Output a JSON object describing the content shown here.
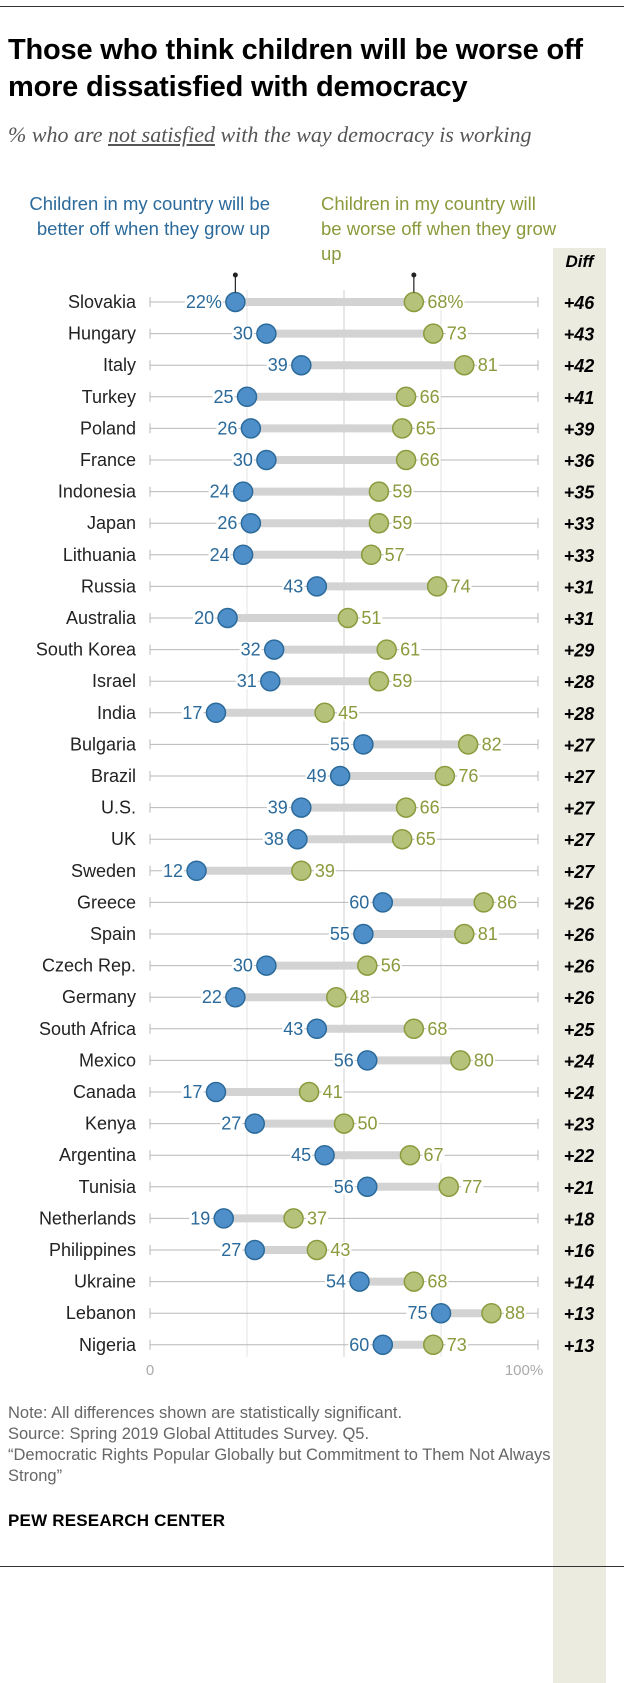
{
  "header": {
    "title": "Those who think children will be worse off more dissatisfied with democracy",
    "subtitle_before": "% who are ",
    "subtitle_underlined": "not satisfied",
    "subtitle_after": " with the way democracy is working"
  },
  "legend": {
    "better_off": "Children in my country will be better off when they grow up",
    "worse_off": "Children in my country will be worse off when they grow up",
    "diff_header": "Diff"
  },
  "colors": {
    "better_off": "#4f8fc9",
    "better_off_stroke": "#2b6a9a",
    "worse_off": "#b5c37a",
    "worse_off_stroke": "#8a9a3c",
    "bar": "#d3d3d3",
    "diff_band": "#ecebe0"
  },
  "chart_data": {
    "type": "dot",
    "series": [
      {
        "name": "Children in my country will be better off when they grow up",
        "key": "better"
      },
      {
        "name": "Children in my country will be worse off when they grow up",
        "key": "worse"
      }
    ],
    "xlim": [
      0,
      100
    ],
    "axis_labels": [
      "0",
      "100%"
    ],
    "rows": [
      {
        "country": "Slovakia",
        "better": 22,
        "worse": 68,
        "better_label": "22%",
        "worse_label": "68%",
        "diff": "+46"
      },
      {
        "country": "Hungary",
        "better": 30,
        "worse": 73,
        "better_label": "30",
        "worse_label": "73",
        "diff": "+43"
      },
      {
        "country": "Italy",
        "better": 39,
        "worse": 81,
        "better_label": "39",
        "worse_label": "81",
        "diff": "+42"
      },
      {
        "country": "Turkey",
        "better": 25,
        "worse": 66,
        "better_label": "25",
        "worse_label": "66",
        "diff": "+41"
      },
      {
        "country": "Poland",
        "better": 26,
        "worse": 65,
        "better_label": "26",
        "worse_label": "65",
        "diff": "+39"
      },
      {
        "country": "France",
        "better": 30,
        "worse": 66,
        "better_label": "30",
        "worse_label": "66",
        "diff": "+36"
      },
      {
        "country": "Indonesia",
        "better": 24,
        "worse": 59,
        "better_label": "24",
        "worse_label": "59",
        "diff": "+35"
      },
      {
        "country": "Japan",
        "better": 26,
        "worse": 59,
        "better_label": "26",
        "worse_label": "59",
        "diff": "+33"
      },
      {
        "country": "Lithuania",
        "better": 24,
        "worse": 57,
        "better_label": "24",
        "worse_label": "57",
        "diff": "+33"
      },
      {
        "country": "Russia",
        "better": 43,
        "worse": 74,
        "better_label": "43",
        "worse_label": "74",
        "diff": "+31"
      },
      {
        "country": "Australia",
        "better": 20,
        "worse": 51,
        "better_label": "20",
        "worse_label": "51",
        "diff": "+31"
      },
      {
        "country": "South Korea",
        "better": 32,
        "worse": 61,
        "better_label": "32",
        "worse_label": "61",
        "diff": "+29"
      },
      {
        "country": "Israel",
        "better": 31,
        "worse": 59,
        "better_label": "31",
        "worse_label": "59",
        "diff": "+28"
      },
      {
        "country": "India",
        "better": 17,
        "worse": 45,
        "better_label": "17",
        "worse_label": "45",
        "diff": "+28"
      },
      {
        "country": "Bulgaria",
        "better": 55,
        "worse": 82,
        "better_label": "55",
        "worse_label": "82",
        "diff": "+27"
      },
      {
        "country": "Brazil",
        "better": 49,
        "worse": 76,
        "better_label": "49",
        "worse_label": "76",
        "diff": "+27"
      },
      {
        "country": "U.S.",
        "better": 39,
        "worse": 66,
        "better_label": "39",
        "worse_label": "66",
        "diff": "+27"
      },
      {
        "country": "UK",
        "better": 38,
        "worse": 65,
        "better_label": "38",
        "worse_label": "65",
        "diff": "+27"
      },
      {
        "country": "Sweden",
        "better": 12,
        "worse": 39,
        "better_label": "12",
        "worse_label": "39",
        "diff": "+27"
      },
      {
        "country": "Greece",
        "better": 60,
        "worse": 86,
        "better_label": "60",
        "worse_label": "86",
        "diff": "+26"
      },
      {
        "country": "Spain",
        "better": 55,
        "worse": 81,
        "better_label": "55",
        "worse_label": "81",
        "diff": "+26"
      },
      {
        "country": "Czech Rep.",
        "better": 30,
        "worse": 56,
        "better_label": "30",
        "worse_label": "56",
        "diff": "+26"
      },
      {
        "country": "Germany",
        "better": 22,
        "worse": 48,
        "better_label": "22",
        "worse_label": "48",
        "diff": "+26"
      },
      {
        "country": "South Africa",
        "better": 43,
        "worse": 68,
        "better_label": "43",
        "worse_label": "68",
        "diff": "+25"
      },
      {
        "country": "Mexico",
        "better": 56,
        "worse": 80,
        "better_label": "56",
        "worse_label": "80",
        "diff": "+24"
      },
      {
        "country": "Canada",
        "better": 17,
        "worse": 41,
        "better_label": "17",
        "worse_label": "41",
        "diff": "+24"
      },
      {
        "country": "Kenya",
        "better": 27,
        "worse": 50,
        "better_label": "27",
        "worse_label": "50",
        "diff": "+23"
      },
      {
        "country": "Argentina",
        "better": 45,
        "worse": 67,
        "better_label": "45",
        "worse_label": "67",
        "diff": "+22"
      },
      {
        "country": "Tunisia",
        "better": 56,
        "worse": 77,
        "better_label": "56",
        "worse_label": "77",
        "diff": "+21"
      },
      {
        "country": "Netherlands",
        "better": 19,
        "worse": 37,
        "better_label": "19",
        "worse_label": "37",
        "diff": "+18"
      },
      {
        "country": "Philippines",
        "better": 27,
        "worse": 43,
        "better_label": "27",
        "worse_label": "43",
        "diff": "+16"
      },
      {
        "country": "Ukraine",
        "better": 54,
        "worse": 68,
        "better_label": "54",
        "worse_label": "68",
        "diff": "+14"
      },
      {
        "country": "Lebanon",
        "better": 75,
        "worse": 88,
        "better_label": "75",
        "worse_label": "88",
        "diff": "+13"
      },
      {
        "country": "Nigeria",
        "better": 60,
        "worse": 73,
        "better_label": "60",
        "worse_label": "73",
        "diff": "+13"
      }
    ]
  },
  "footer": {
    "note": "Note: All differences shown are statistically significant.",
    "source": "Source: Spring 2019 Global Attitudes Survey. Q5.",
    "report": "“Democratic Rights Popular Globally but Commitment to Them Not Always Strong”",
    "brand": "PEW RESEARCH CENTER"
  }
}
